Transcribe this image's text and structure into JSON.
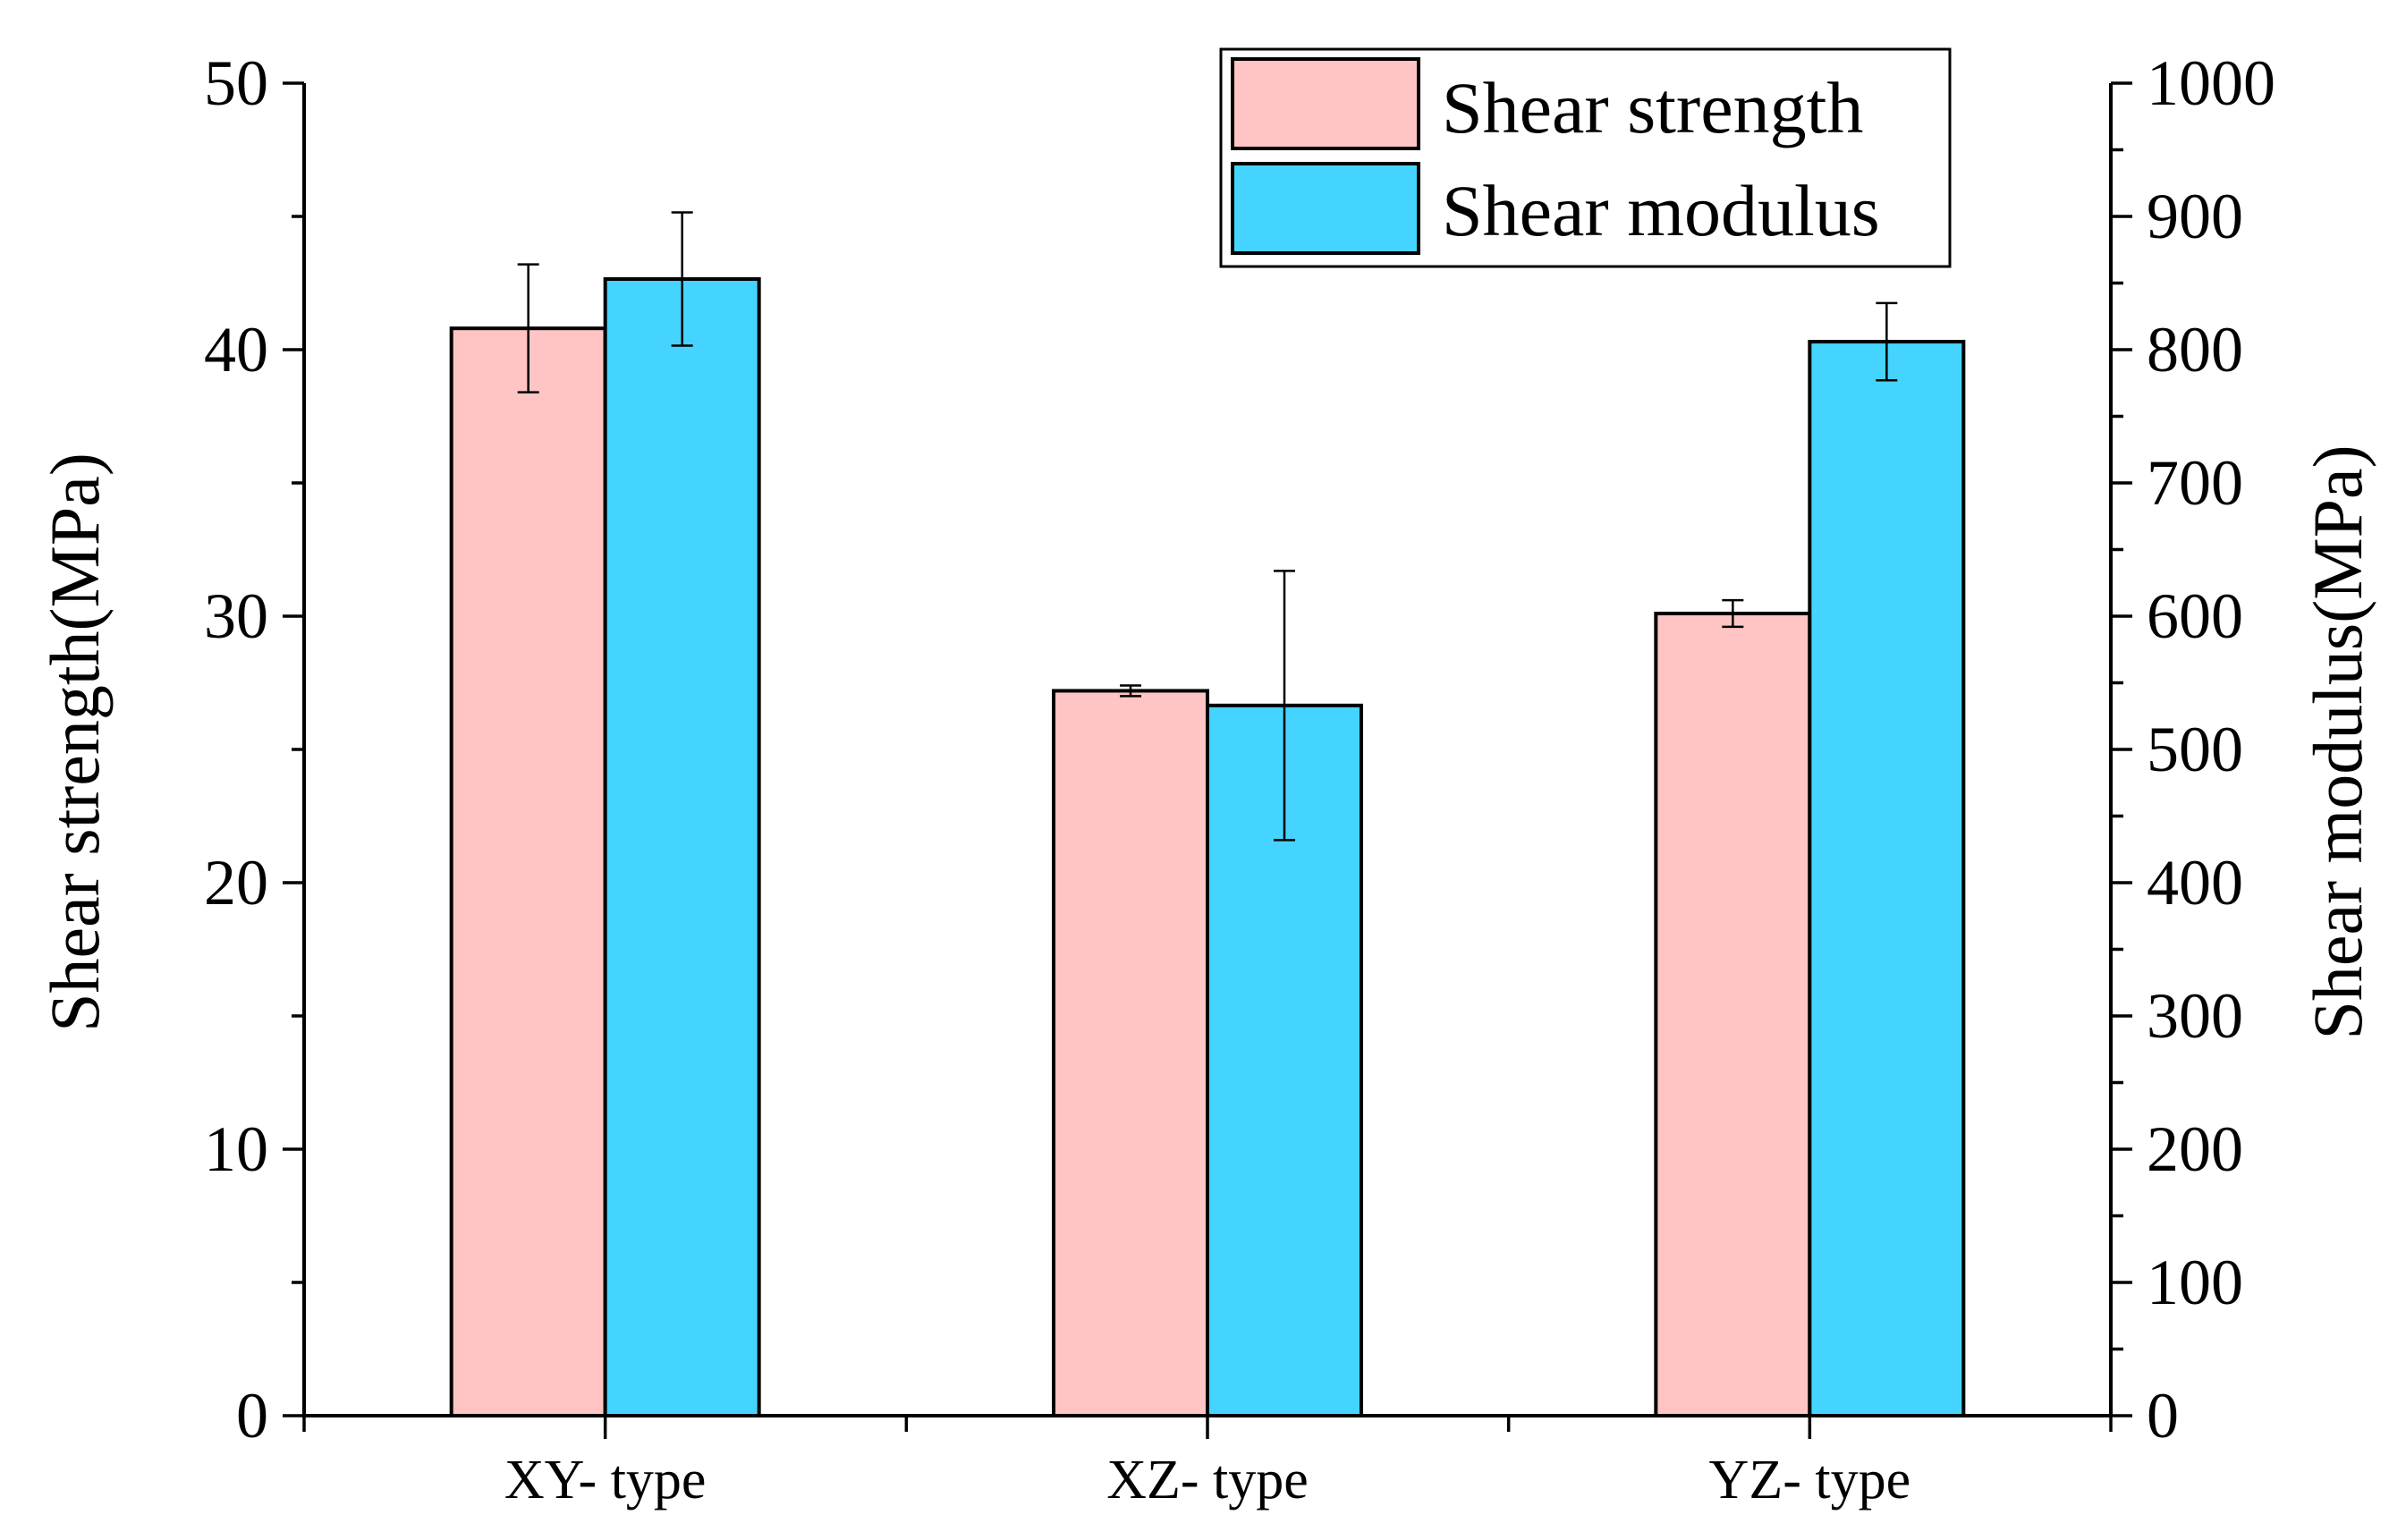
{
  "chart_data": {
    "type": "bar",
    "categories": [
      "XY- type",
      "XZ- type",
      "YZ- type"
    ],
    "series": [
      {
        "name": "Shear strength",
        "axis": "left",
        "color": "#FFC4C4",
        "values": [
          40.8,
          27.2,
          30.1
        ],
        "errors": [
          2.4,
          0.2,
          0.5
        ]
      },
      {
        "name": "Shear modulus",
        "axis": "right",
        "color": "#45D4FF",
        "values": [
          853,
          533,
          806
        ],
        "errors": [
          50,
          101,
          29
        ]
      }
    ],
    "ylabel_left": "Shear strength(MPa)",
    "ylabel_right": "Shear modulus(MPa)",
    "ylim_left": [
      0,
      50
    ],
    "ylim_right": [
      0,
      1000
    ],
    "yticks_left": [
      "0",
      "10",
      "20",
      "30",
      "40",
      "50"
    ],
    "yticks_right": [
      "0",
      "100",
      "200",
      "300",
      "400",
      "500",
      "600",
      "700",
      "800",
      "900",
      "1000"
    ],
    "legend": {
      "position": "top-right",
      "entries": [
        "Shear strength",
        "Shear modulus"
      ]
    },
    "grid": false
  }
}
